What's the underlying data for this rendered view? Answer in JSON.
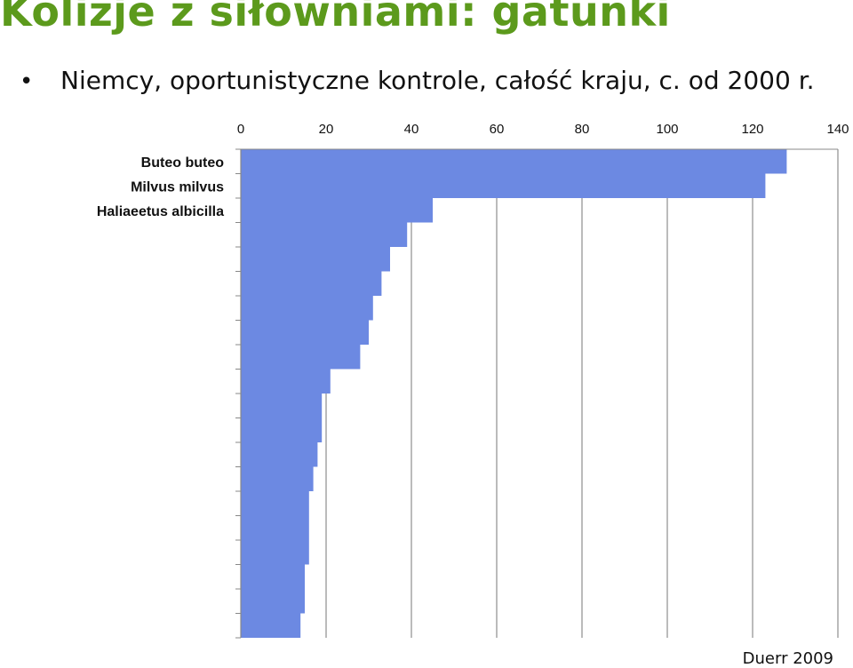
{
  "slide": {
    "title": "Kolizje z siłowniami: gatunki",
    "bullet": "Niemcy, oportunistyczne kontrole, całość kraju, c. od 2000 r.",
    "credit": "Duerr 2009"
  },
  "chart_data": {
    "type": "bar",
    "orientation": "horizontal",
    "title": "",
    "xlabel": "",
    "ylabel": "",
    "xlim": [
      0,
      140
    ],
    "x_ticks": [
      0,
      20,
      40,
      60,
      80,
      100,
      120,
      140
    ],
    "grid": true,
    "colors": {
      "bar": "#6c89e2",
      "grid": "#777777"
    },
    "categories": [
      "Buteo buteo",
      "Milvus milvus",
      "Haliaeetus albicilla",
      "",
      "",
      "",
      "",
      "",
      "",
      "",
      "",
      "",
      "",
      "",
      "",
      "",
      "",
      "",
      "",
      ""
    ],
    "values": [
      128,
      123,
      45,
      39,
      35,
      33,
      31,
      30,
      28,
      21,
      19,
      19,
      18,
      17,
      16,
      16,
      16,
      15,
      15,
      14
    ]
  }
}
